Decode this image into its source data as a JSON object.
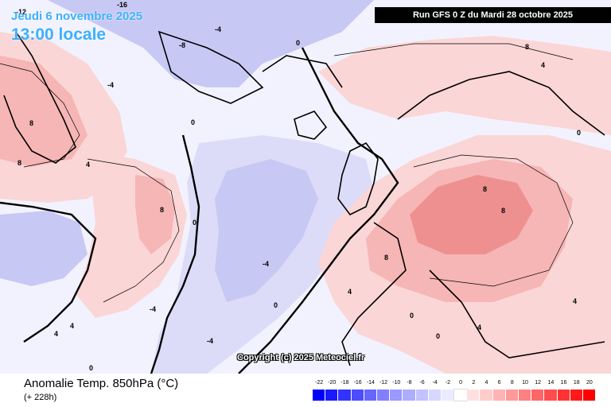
{
  "header": {
    "valid_date": "Jeudi 6 novembre 2025",
    "valid_time": "13:00 locale",
    "run_info": "Run GFS 0 Z du Mardi 28 octobre 2025",
    "copyright": "Copyright (c) 2025 Meteociel.fr"
  },
  "footer": {
    "parameter_title": "Anomalie Temp. 850hPa (°C)",
    "lead_time": "(+ 228h)"
  },
  "scale": {
    "ticks": [
      "-22",
      "-20",
      "-18",
      "-16",
      "-14",
      "-12",
      "-10",
      "-8",
      "-6",
      "-4",
      "-2",
      "0",
      "2",
      "4",
      "6",
      "8",
      "10",
      "12",
      "14",
      "16",
      "18",
      "20"
    ],
    "colors": [
      "#0000ff",
      "#1a1aff",
      "#3333ff",
      "#4d4dff",
      "#6666ff",
      "#8080ff",
      "#9999ff",
      "#adadff",
      "#c2c2ff",
      "#d6d6ff",
      "#ebebff",
      "#ffffff",
      "#ffe0e0",
      "#ffcccc",
      "#ffb3b3",
      "#ff9999",
      "#ff8080",
      "#ff6666",
      "#ff4d4d",
      "#ff3333",
      "#ff1a1a",
      "#ff0000"
    ]
  },
  "map": {
    "colors": {
      "ocean_neutral": "#f2f2ff",
      "cold_light": "#dcdcf8",
      "cold_mid": "#c8c8f4",
      "warm_light": "#fbd6d6",
      "warm_mid": "#f6b6b6",
      "warm_strong": "#ef9090",
      "coast": "#000000",
      "contour_zero": "#000000"
    },
    "contour_labels": [
      {
        "text": "-16"
      },
      {
        "text": "-12"
      },
      {
        "text": "-8"
      },
      {
        "text": "-4"
      },
      {
        "text": "-4"
      },
      {
        "text": "-4"
      },
      {
        "text": "0"
      },
      {
        "text": "0"
      },
      {
        "text": "0"
      },
      {
        "text": "0"
      },
      {
        "text": "0"
      },
      {
        "text": "0"
      },
      {
        "text": "4"
      },
      {
        "text": "4"
      },
      {
        "text": "4"
      },
      {
        "text": "4"
      },
      {
        "text": "4"
      },
      {
        "text": "4"
      },
      {
        "text": "8"
      },
      {
        "text": "8"
      },
      {
        "text": "8"
      },
      {
        "text": "8"
      },
      {
        "text": "8"
      },
      {
        "text": "8"
      },
      {
        "text": "-4"
      },
      {
        "text": "-4"
      },
      {
        "text": "0"
      },
      {
        "text": "4"
      },
      {
        "text": "8"
      },
      {
        "text": "0"
      }
    ]
  }
}
